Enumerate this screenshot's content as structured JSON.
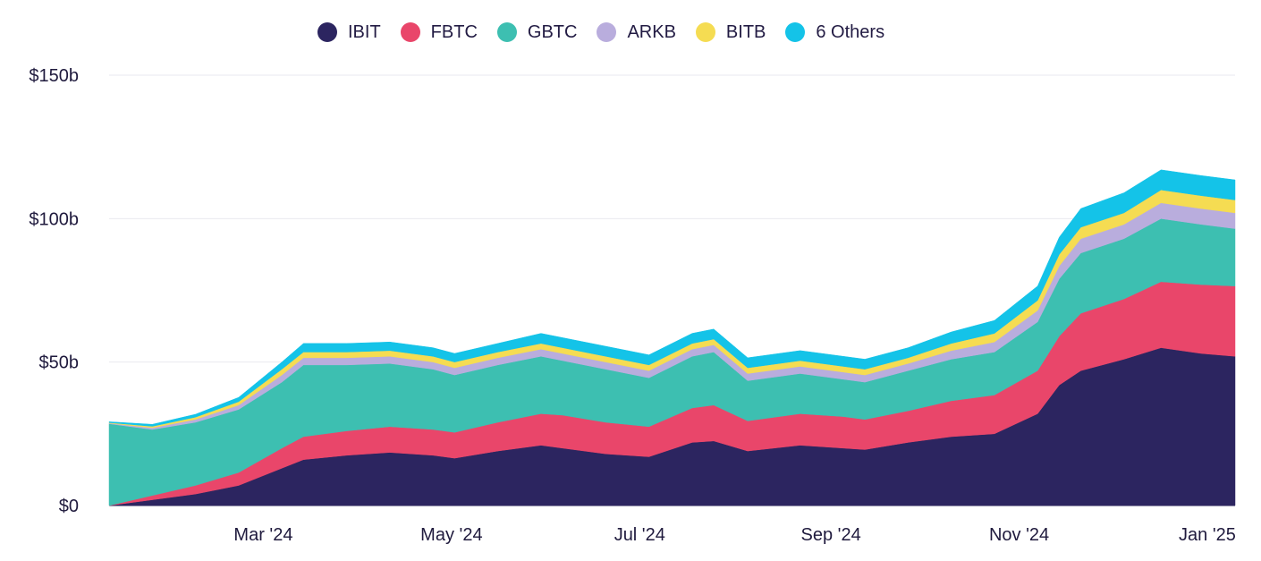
{
  "chart_data": {
    "type": "area",
    "stacked": true,
    "title": "",
    "xlabel": "",
    "ylabel": "",
    "ylim": [
      0,
      150
    ],
    "grid": true,
    "legend_position": "top",
    "colors": {
      "IBIT": "#2c2560",
      "FBTC": "#e9466a",
      "GBTC": "#3dbfb1",
      "ARKB": "#b9addd",
      "BITB": "#f5dc52",
      "6 Others": "#14c3e8"
    },
    "x_ticks": [
      "Mar '24",
      "May '24",
      "Jul '24",
      "Sep '24",
      "Nov '24",
      "Jan '25"
    ],
    "y_ticks": [
      "$0",
      "$50b",
      "$100b",
      "$150b"
    ],
    "x": [
      "2024-01-11",
      "2024-01-25",
      "2024-02-08",
      "2024-02-22",
      "2024-03-07",
      "2024-03-14",
      "2024-03-28",
      "2024-04-11",
      "2024-04-25",
      "2024-05-02",
      "2024-05-16",
      "2024-05-30",
      "2024-06-06",
      "2024-06-20",
      "2024-07-04",
      "2024-07-18",
      "2024-07-25",
      "2024-08-05",
      "2024-08-22",
      "2024-09-05",
      "2024-09-12",
      "2024-09-26",
      "2024-10-10",
      "2024-10-24",
      "2024-11-07",
      "2024-11-14",
      "2024-11-21",
      "2024-12-05",
      "2024-12-17",
      "2024-12-30",
      "2025-01-10"
    ],
    "series": [
      {
        "name": "IBIT",
        "values": [
          0,
          2,
          4,
          7,
          13,
          16,
          17.5,
          18.5,
          17.5,
          16.5,
          19,
          21,
          20,
          18,
          17,
          22,
          22.5,
          19,
          21,
          20,
          19.5,
          22,
          24,
          25,
          32,
          42,
          47,
          51,
          55,
          53,
          52
        ]
      },
      {
        "name": "FBTC",
        "values": [
          0,
          1.5,
          3,
          4.5,
          7,
          8,
          8.5,
          9,
          9,
          9,
          10,
          11,
          11.5,
          11,
          10.5,
          12,
          12.5,
          10.5,
          11,
          11,
          10.5,
          11,
          12.5,
          13.5,
          15,
          17,
          20,
          21,
          23,
          24,
          24.5
        ]
      },
      {
        "name": "GBTC",
        "values": [
          28.5,
          23,
          22,
          22,
          23,
          25,
          23,
          22,
          21,
          20,
          20,
          20,
          19,
          18.5,
          17,
          18,
          18.5,
          14,
          14,
          13,
          13,
          14,
          14.5,
          15,
          17,
          20,
          21,
          21,
          22,
          21,
          20
        ]
      },
      {
        "name": "ARKB",
        "values": [
          0.2,
          0.6,
          1,
          1.5,
          2.5,
          2.5,
          2.5,
          2.5,
          2.5,
          2.5,
          2.5,
          2.5,
          2.5,
          2.5,
          2.5,
          2.5,
          2.5,
          2.5,
          2.5,
          2.5,
          2.5,
          2.5,
          3,
          3.5,
          4,
          4.5,
          5,
          5,
          5.5,
          5.5,
          5.5
        ]
      },
      {
        "name": "BITB",
        "values": [
          0.2,
          0.5,
          0.8,
          1.2,
          2,
          2,
          2,
          2,
          2,
          2,
          2,
          2,
          2,
          2,
          2,
          2,
          2,
          2,
          2,
          2,
          2,
          2,
          2.5,
          3,
          3.5,
          4,
          4,
          4,
          4.5,
          4.5,
          4.5
        ]
      },
      {
        "name": "6 Others",
        "values": [
          0.3,
          0.7,
          1,
          1.5,
          2.5,
          3,
          3,
          3,
          3,
          3,
          3,
          3.5,
          3.5,
          3.5,
          3.5,
          3.5,
          3.5,
          3.5,
          3.5,
          3.5,
          3.5,
          3.5,
          4,
          4.5,
          5,
          6,
          6.5,
          7,
          7,
          7,
          7
        ]
      }
    ]
  }
}
